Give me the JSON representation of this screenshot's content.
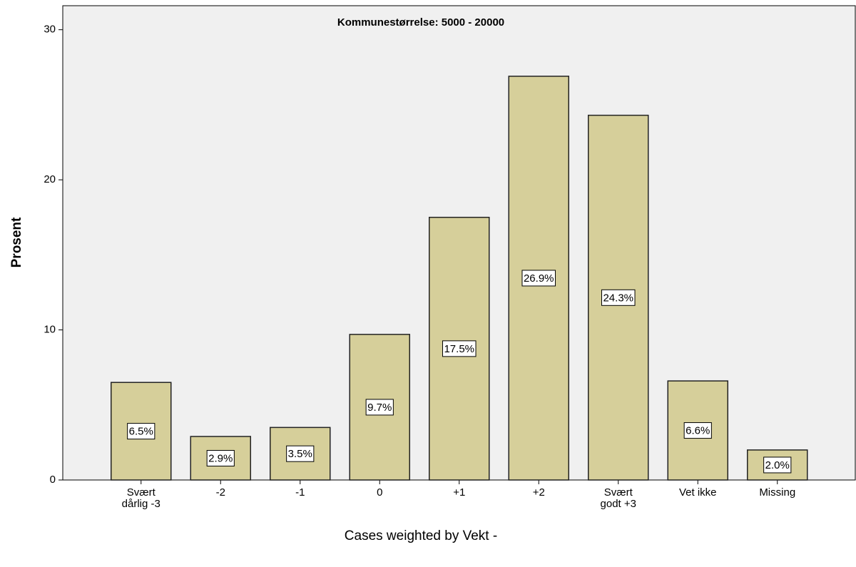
{
  "chart_data": {
    "type": "bar",
    "title": "Kommunestørrelse: 5000 - 20000",
    "y_label": "Prosent",
    "footnote": "Cases weighted by Vekt -",
    "categories": [
      "Svært dårlig -3",
      "-2",
      "-1",
      "0",
      "+1",
      "+2",
      "Svært godt +3",
      "Vet ikke",
      "Missing"
    ],
    "values": [
      6.5,
      2.9,
      3.5,
      9.7,
      17.5,
      26.9,
      24.3,
      6.6,
      2.0
    ],
    "value_labels": [
      "6.5%",
      "2.9%",
      "3.5%",
      "9.7%",
      "17.5%",
      "26.9%",
      "24.3%",
      "6.6%",
      "2.0%"
    ],
    "color": "#d6cf9a",
    "ylim": [
      0,
      31.6
    ],
    "yticks": [
      0,
      10,
      20,
      30
    ],
    "grid": false
  }
}
